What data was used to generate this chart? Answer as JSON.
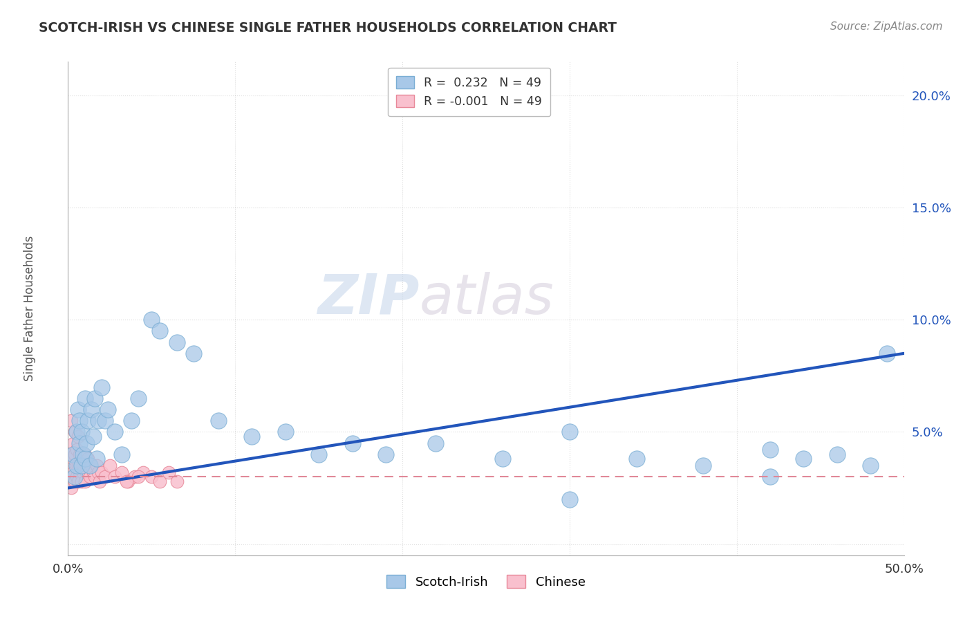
{
  "title": "SCOTCH-IRISH VS CHINESE SINGLE FATHER HOUSEHOLDS CORRELATION CHART",
  "source_text": "Source: ZipAtlas.com",
  "ylabel": "Single Father Households",
  "xlim": [
    0.0,
    0.5
  ],
  "ylim": [
    -0.005,
    0.215
  ],
  "ytick_positions": [
    0.0,
    0.05,
    0.1,
    0.15,
    0.2
  ],
  "ytick_labels": [
    "",
    "5.0%",
    "10.0%",
    "15.0%",
    "20.0%"
  ],
  "legend_r_entries": [
    {
      "label": "R =  0.232   N = 49",
      "color": "#a8c4e0"
    },
    {
      "label": "R = -0.001   N = 49",
      "color": "#f4a7b9"
    }
  ],
  "scotch_irish_x": [
    0.003,
    0.004,
    0.005,
    0.005,
    0.006,
    0.007,
    0.007,
    0.008,
    0.008,
    0.009,
    0.01,
    0.01,
    0.011,
    0.012,
    0.013,
    0.014,
    0.015,
    0.016,
    0.017,
    0.018,
    0.02,
    0.022,
    0.024,
    0.028,
    0.032,
    0.038,
    0.042,
    0.05,
    0.055,
    0.065,
    0.075,
    0.09,
    0.11,
    0.13,
    0.15,
    0.17,
    0.19,
    0.22,
    0.26,
    0.3,
    0.34,
    0.38,
    0.42,
    0.44,
    0.46,
    0.48,
    0.49,
    0.3,
    0.42
  ],
  "scotch_irish_y": [
    0.04,
    0.03,
    0.05,
    0.035,
    0.06,
    0.045,
    0.055,
    0.035,
    0.05,
    0.04,
    0.065,
    0.038,
    0.045,
    0.055,
    0.035,
    0.06,
    0.048,
    0.065,
    0.038,
    0.055,
    0.07,
    0.055,
    0.06,
    0.05,
    0.04,
    0.055,
    0.065,
    0.1,
    0.095,
    0.09,
    0.085,
    0.055,
    0.048,
    0.05,
    0.04,
    0.045,
    0.04,
    0.045,
    0.038,
    0.05,
    0.038,
    0.035,
    0.042,
    0.038,
    0.04,
    0.035,
    0.085,
    0.02,
    0.03
  ],
  "chinese_x": [
    0.001,
    0.001,
    0.002,
    0.002,
    0.002,
    0.003,
    0.003,
    0.003,
    0.004,
    0.004,
    0.004,
    0.005,
    0.005,
    0.005,
    0.006,
    0.006,
    0.006,
    0.007,
    0.007,
    0.008,
    0.008,
    0.009,
    0.009,
    0.01,
    0.01,
    0.011,
    0.011,
    0.012,
    0.013,
    0.014,
    0.015,
    0.016,
    0.017,
    0.018,
    0.019,
    0.02,
    0.022,
    0.025,
    0.028,
    0.032,
    0.036,
    0.04,
    0.045,
    0.05,
    0.055,
    0.06,
    0.065,
    0.035,
    0.042
  ],
  "chinese_y": [
    0.03,
    0.04,
    0.035,
    0.055,
    0.025,
    0.045,
    0.032,
    0.038,
    0.05,
    0.028,
    0.04,
    0.035,
    0.042,
    0.03,
    0.048,
    0.035,
    0.028,
    0.04,
    0.032,
    0.038,
    0.028,
    0.035,
    0.032,
    0.04,
    0.028,
    0.035,
    0.032,
    0.038,
    0.03,
    0.035,
    0.032,
    0.03,
    0.035,
    0.032,
    0.028,
    0.032,
    0.03,
    0.035,
    0.03,
    0.032,
    0.028,
    0.03,
    0.032,
    0.03,
    0.028,
    0.032,
    0.028,
    0.028,
    0.03
  ],
  "scotch_color": "#a8c8e8",
  "scotch_edge": "#7aaed4",
  "chinese_color": "#f9c0ce",
  "chinese_edge": "#e8899a",
  "trendline_scotch_color": "#2255bb",
  "trendline_chinese_color": "#e08898",
  "trendline_scotch_start_y": 0.025,
  "trendline_scotch_end_y": 0.085,
  "trendline_chinese_y": 0.03,
  "watermark_zip": "ZIP",
  "watermark_atlas": "atlas",
  "background_color": "#ffffff",
  "grid_color": "#dddddd",
  "grid_color_h": "#dddddd"
}
